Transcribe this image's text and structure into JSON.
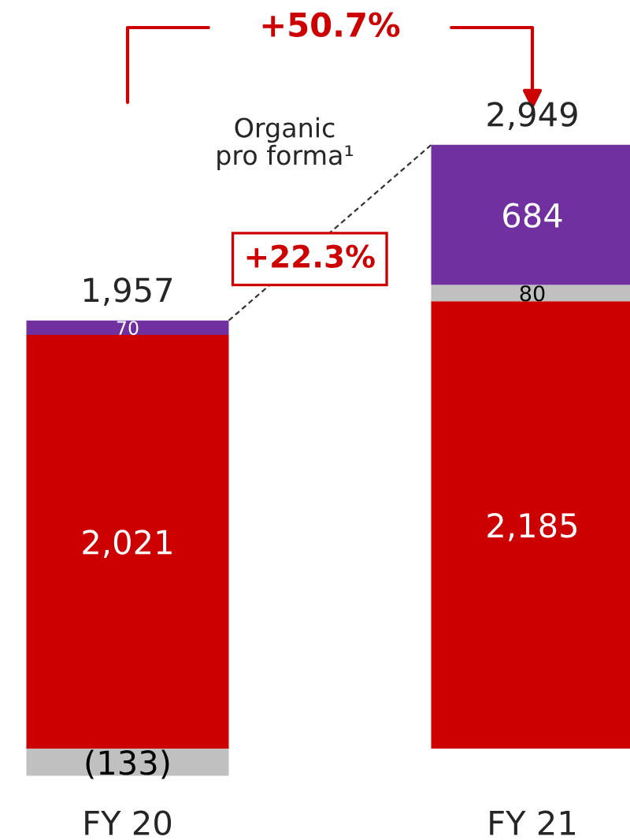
{
  "chart_data": {
    "type": "bar",
    "stacked": true,
    "categories": [
      "FY 20",
      "FY 21"
    ],
    "series": [
      {
        "color": "#cc0000",
        "values": [
          2021,
          2185
        ],
        "value_labels": [
          "2,021",
          "2,185"
        ]
      },
      {
        "color": "#c0c0c0",
        "values": [
          -133,
          80
        ],
        "value_labels": [
          "(133)",
          "80"
        ]
      },
      {
        "color": "#7030a0",
        "values": [
          70,
          684
        ],
        "value_labels": [
          "70",
          "684"
        ]
      }
    ],
    "totals": [
      "1,957",
      "2,949"
    ],
    "annotations": [
      "+50.7%",
      "Organic pro forma¹",
      "+22.3%"
    ],
    "grid": false,
    "legend": false
  }
}
